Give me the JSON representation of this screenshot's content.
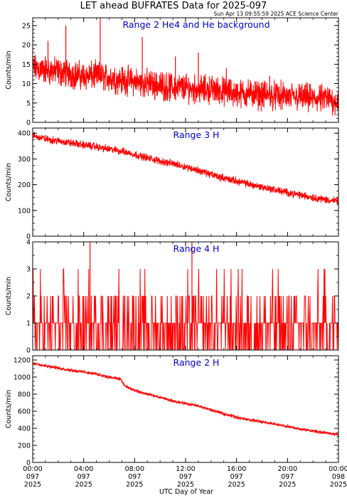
{
  "title": "LET ahead BUFRATES Data for 2025-097",
  "timestamp": "Sun Apr 13 09:55:59 2025 ACE Science Center",
  "xlabel": "UTC Day of Year",
  "x_ticks": [
    {
      "time": "00:00",
      "doy": "097",
      "year": "2025"
    },
    {
      "time": "04:00",
      "doy": "097",
      "year": "2025"
    },
    {
      "time": "08:00",
      "doy": "097",
      "year": "2025"
    },
    {
      "time": "12:00",
      "doy": "097",
      "year": "2025"
    },
    {
      "time": "16:00",
      "doy": "097",
      "year": "2025"
    },
    {
      "time": "20:00",
      "doy": "097",
      "year": "2025"
    },
    {
      "time": "00:00",
      "doy": "098",
      "year": "2025"
    }
  ],
  "line_color": "#ff0000",
  "title_color": "#0000cc",
  "chart_data": [
    {
      "type": "line",
      "title": "Range 2 He4 and He background",
      "ylabel": "Counts/min",
      "xlim_hours": [
        0,
        24
      ],
      "ylim": [
        0,
        27
      ],
      "yticks": [
        0,
        5,
        10,
        15,
        20,
        25
      ],
      "series": [
        {
          "x_hours": [
            0,
            1,
            2,
            3,
            4,
            5,
            6,
            7,
            8,
            9,
            10,
            11,
            12,
            13,
            14,
            15,
            16,
            17,
            18,
            19,
            20,
            21,
            22,
            23,
            24
          ],
          "values": [
            14,
            13.5,
            13,
            12.5,
            12,
            12,
            11.5,
            11,
            10.5,
            10,
            9.5,
            9,
            9,
            8.5,
            8.5,
            8,
            7.5,
            7.5,
            7,
            7,
            6.5,
            6.5,
            6,
            6,
            5.5
          ]
        }
      ],
      "noise": {
        "amplitude": 4.5,
        "samples": 1440
      },
      "spikes": [
        [
          1.2,
          21
        ],
        [
          2.6,
          25
        ],
        [
          5.3,
          27
        ],
        [
          8.6,
          22
        ],
        [
          11.2,
          17
        ],
        [
          13.0,
          18
        ],
        [
          15.2,
          14
        ],
        [
          18.6,
          12
        ]
      ]
    },
    {
      "type": "line",
      "title": "Range 3 H",
      "ylabel": "Counts/min",
      "xlim_hours": [
        0,
        24
      ],
      "ylim": [
        0,
        420
      ],
      "yticks": [
        0,
        100,
        200,
        300,
        400
      ],
      "series": [
        {
          "x_hours": [
            0,
            1,
            2,
            3,
            4,
            5,
            6,
            7,
            8,
            9,
            10,
            11,
            12,
            13,
            14,
            15,
            16,
            17,
            18,
            19,
            20,
            21,
            22,
            23,
            24
          ],
          "values": [
            390,
            378,
            370,
            362,
            355,
            347,
            338,
            330,
            318,
            304,
            292,
            282,
            270,
            256,
            240,
            226,
            214,
            202,
            191,
            180,
            170,
            160,
            150,
            142,
            135
          ]
        }
      ],
      "noise": {
        "amplitude": 18,
        "samples": 1440
      },
      "spikes": []
    },
    {
      "type": "line",
      "title": "Range 4 H",
      "ylabel": "Counts/min",
      "xlim_hours": [
        0,
        24
      ],
      "ylim": [
        0,
        4
      ],
      "yticks": [
        0,
        1,
        2,
        3,
        4
      ],
      "series": [
        {
          "x_hours": [
            0,
            24
          ],
          "values": [
            1,
            1
          ]
        }
      ],
      "discrete": {
        "levels": [
          0,
          1,
          2,
          3,
          4
        ],
        "samples": 720
      },
      "spikes": [
        [
          4.5,
          4
        ],
        [
          12.5,
          4
        ]
      ]
    },
    {
      "type": "line",
      "title": "Range 2 H",
      "ylabel": "Counts/min",
      "xlim_hours": [
        0,
        24
      ],
      "ylim": [
        0,
        1250
      ],
      "yticks": [
        0,
        200,
        400,
        600,
        800,
        1000,
        1200
      ],
      "series": [
        {
          "x_hours": [
            0,
            1,
            2,
            3,
            4,
            5,
            6,
            6.9,
            7.2,
            8,
            9,
            10,
            11,
            12,
            13,
            14,
            15,
            16,
            17,
            18,
            19,
            20,
            21,
            22,
            23,
            24
          ],
          "values": [
            1165,
            1135,
            1105,
            1080,
            1060,
            1035,
            1000,
            975,
            900,
            840,
            800,
            760,
            720,
            690,
            660,
            615,
            570,
            530,
            500,
            475,
            450,
            420,
            390,
            370,
            345,
            325
          ]
        }
      ],
      "noise": {
        "amplitude": 22,
        "samples": 1440
      },
      "spikes": []
    }
  ]
}
